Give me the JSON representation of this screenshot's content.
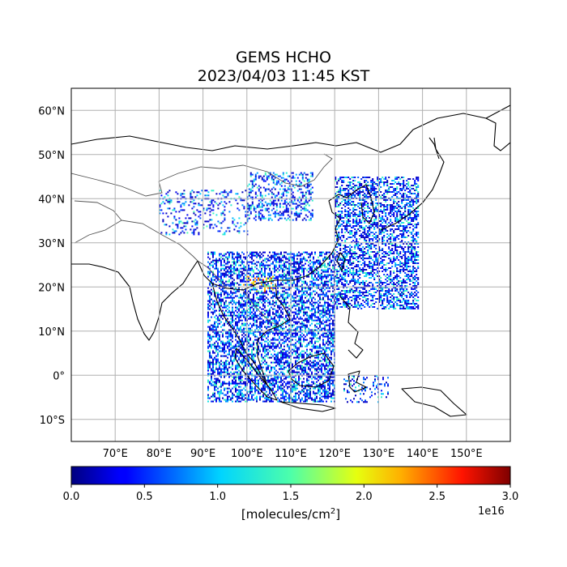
{
  "title": {
    "line1": "GEMS HCHO",
    "line2": "2023/04/03 11:45 KST"
  },
  "map": {
    "lon_range": [
      60,
      160
    ],
    "lat_range": [
      -15,
      65
    ],
    "lon_ticks": [
      70,
      80,
      90,
      100,
      110,
      120,
      130,
      140,
      150
    ],
    "lon_tick_labels": [
      "70°E",
      "80°E",
      "90°E",
      "100°E",
      "110°E",
      "120°E",
      "130°E",
      "140°E",
      "150°E"
    ],
    "lat_ticks": [
      60,
      50,
      40,
      30,
      20,
      10,
      0,
      -10
    ],
    "lat_tick_labels": [
      "60°N",
      "50°N",
      "40°N",
      "30°N",
      "20°N",
      "10°N",
      "0°",
      "10°S"
    ],
    "grid": true
  },
  "colorbar": {
    "colormap": "jet",
    "range": [
      0.0,
      3.0
    ],
    "ticks": [
      0.0,
      0.5,
      1.0,
      1.5,
      2.0,
      2.5,
      3.0
    ],
    "tick_labels": [
      "0.0",
      "0.5",
      "1.0",
      "1.5",
      "2.0",
      "2.5",
      "3.0"
    ],
    "exponent": "1e16",
    "unit_prefix": "[molecules/cm",
    "unit_sup": "2",
    "unit_suffix": "]"
  }
}
